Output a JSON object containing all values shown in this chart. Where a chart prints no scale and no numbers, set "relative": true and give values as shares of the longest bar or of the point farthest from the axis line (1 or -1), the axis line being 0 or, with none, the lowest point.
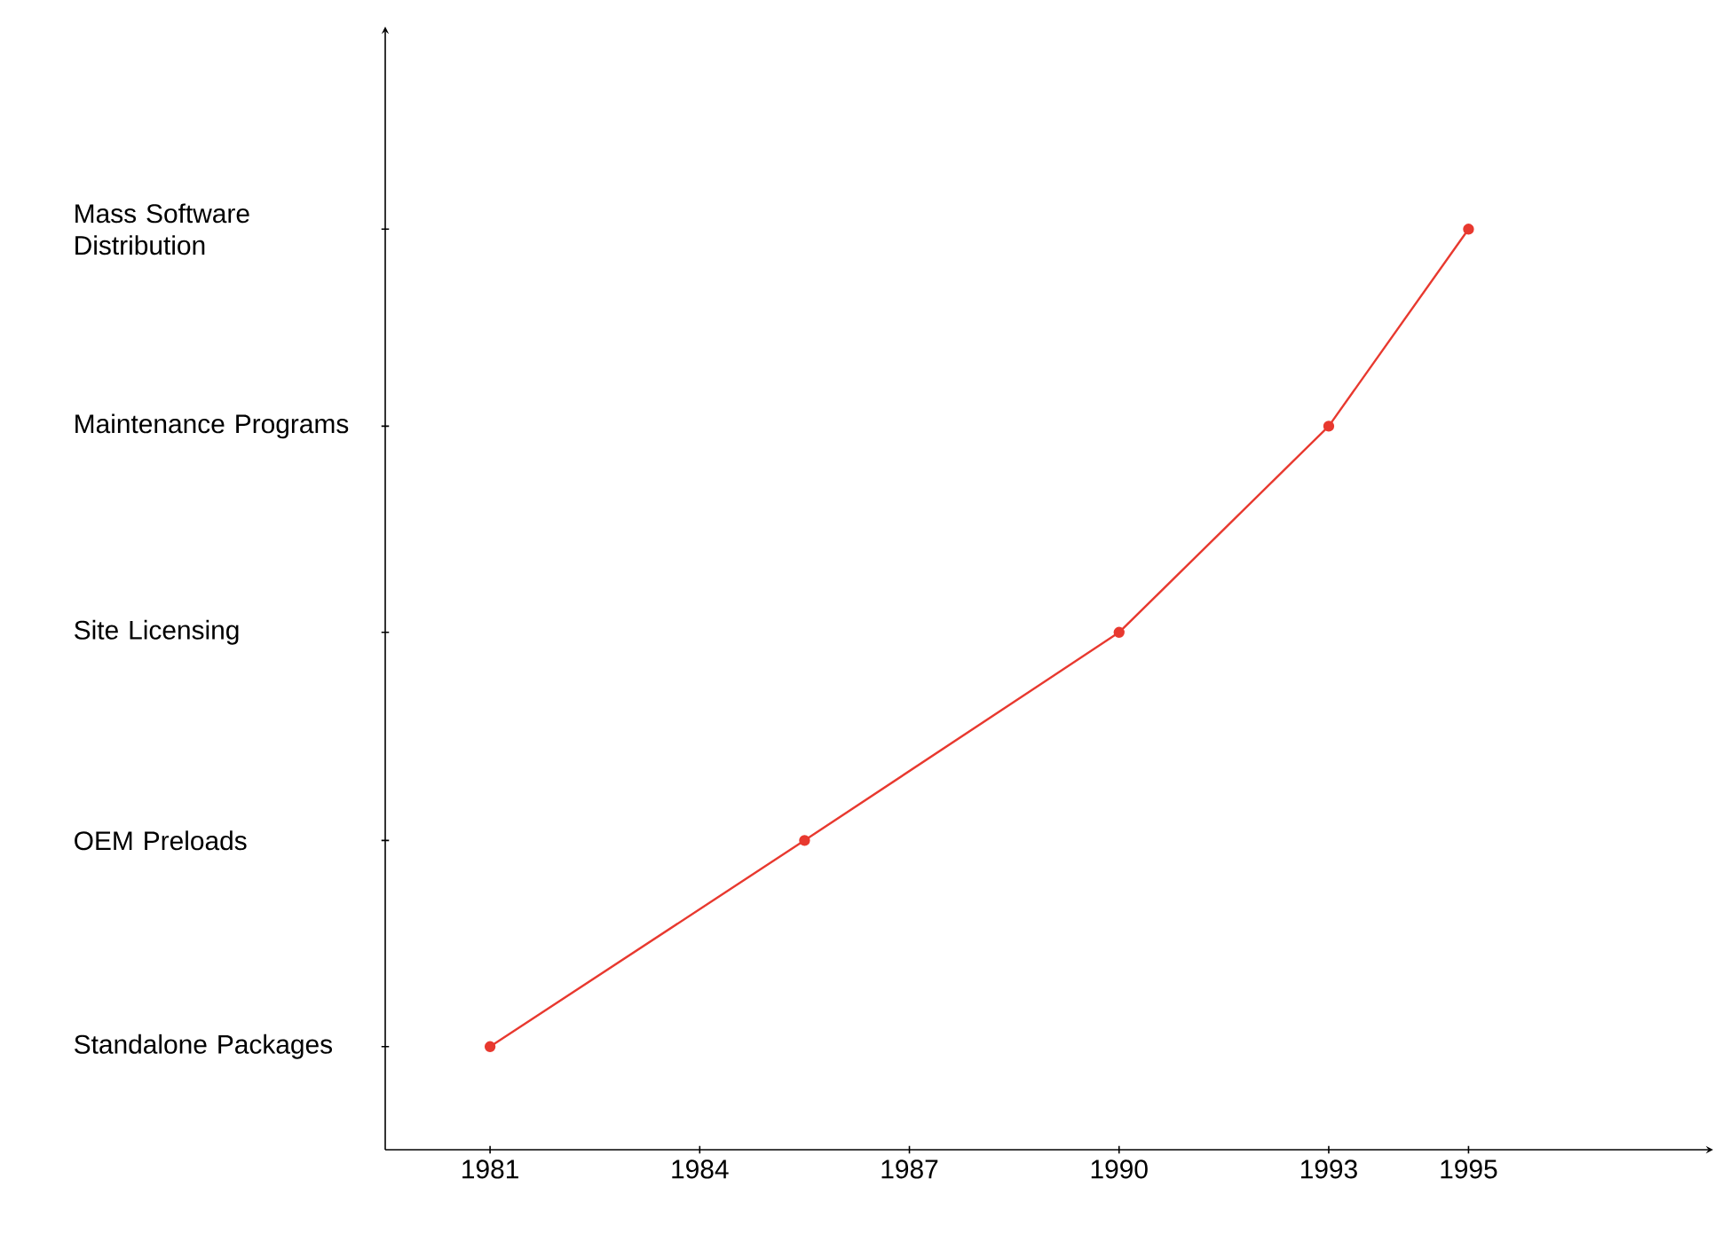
{
  "chart_data": {
    "type": "line",
    "x": [
      1981,
      1985.5,
      1990,
      1993,
      1995
    ],
    "series": [
      {
        "color": "#e8392f",
        "values": [
          0.112,
          0.336,
          0.562,
          0.786,
          1
        ]
      }
    ],
    "relative": true,
    "xlim": [
      1979.5,
      1998.5
    ],
    "xticks": [
      1981,
      1984,
      1987,
      1990,
      1993,
      1995
    ],
    "annotations": [
      "Standalone Packages",
      "OEM Preloads",
      "Site Licensing",
      "Maintenance Programs",
      "Mass Software Distribution"
    ],
    "marker": "circle",
    "line_style": "solid",
    "grid": false
  }
}
